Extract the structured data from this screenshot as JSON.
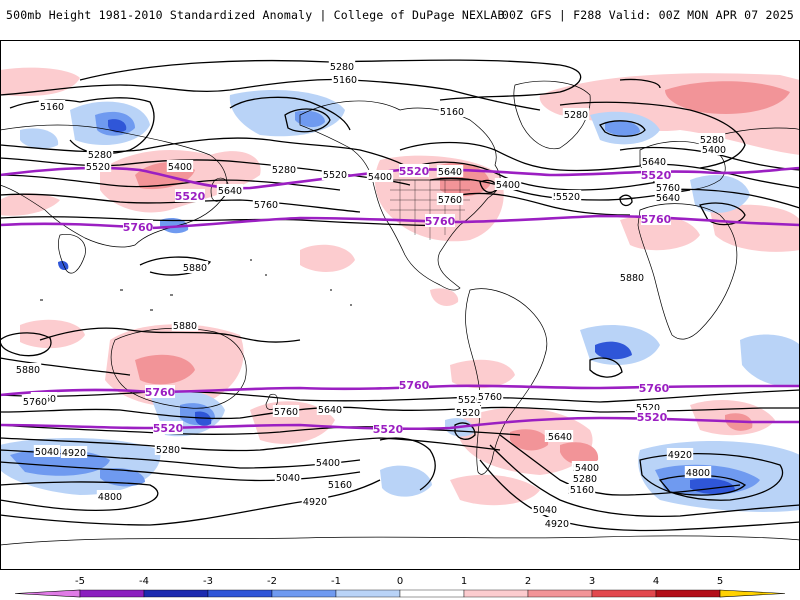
{
  "header": {
    "left": "500mb Height 1981-2010 Standardized Anomaly | College of DuPage NEXLAB",
    "right": "00Z GFS | F288 Valid: 00Z MON APR 07 2025"
  },
  "contour_labels": [
    {
      "text": "5280",
      "lat": 60
    },
    {
      "text": "5160",
      "lat": 57
    },
    {
      "text": "5160",
      "lat": 50
    },
    {
      "text": "5280",
      "lat": 45
    },
    {
      "text": "5520",
      "lat": 42
    },
    {
      "text": "5400",
      "lat": 41
    },
    {
      "text": "5640",
      "lat": 36
    },
    {
      "text": "5520",
      "lat": 30
    },
    {
      "text": "5760",
      "lat": 28
    },
    {
      "text": "5880",
      "lat": 18
    },
    {
      "text": "5280",
      "lat": 38
    },
    {
      "text": "5400",
      "lat": 35
    },
    {
      "text": "5640",
      "lat": 33
    },
    {
      "text": "5760",
      "lat": 24
    },
    {
      "text": "5160",
      "lat": 55
    },
    {
      "text": "5280",
      "lat": 48
    },
    {
      "text": "5400",
      "lat": 42
    },
    {
      "text": "5640",
      "lat": 42
    },
    {
      "text": "5520",
      "lat": 30
    },
    {
      "text": "5760",
      "lat": 27
    },
    {
      "text": "5280",
      "lat": 52
    },
    {
      "text": "5400",
      "lat": 48
    },
    {
      "text": "5640",
      "lat": 40
    },
    {
      "text": "5760",
      "lat": 38
    },
    {
      "text": "5520",
      "lat": 32
    },
    {
      "text": "5880",
      "lat": 0
    },
    {
      "text": "5880",
      "lat": -12
    },
    {
      "text": "5880",
      "lat": -25
    },
    {
      "text": "5760",
      "lat": -40
    },
    {
      "text": "5760",
      "lat": -43
    },
    {
      "text": "5640",
      "lat": -41
    },
    {
      "text": "5520",
      "lat": -40
    },
    {
      "text": "5400",
      "lat": -46
    },
    {
      "text": "5160",
      "lat": -50
    },
    {
      "text": "5040",
      "lat": -51
    },
    {
      "text": "4920",
      "lat": -51
    },
    {
      "text": "5280",
      "lat": -54
    },
    {
      "text": "5400",
      "lat": -58
    },
    {
      "text": "5280",
      "lat": -60
    },
    {
      "text": "5160",
      "lat": -62
    },
    {
      "text": "5040",
      "lat": -61
    },
    {
      "text": "4920",
      "lat": -66
    },
    {
      "text": "4800",
      "lat": -63
    },
    {
      "text": "5640",
      "lat": -47
    },
    {
      "text": "5520",
      "lat": -41
    },
    {
      "text": "5760",
      "lat": -43
    },
    {
      "text": "5760",
      "lat": -30
    },
    {
      "text": "5640",
      "lat": -50
    },
    {
      "text": "5400",
      "lat": -58
    },
    {
      "text": "5280",
      "lat": -59
    },
    {
      "text": "5160",
      "lat": -61
    },
    {
      "text": "5040",
      "lat": -71
    },
    {
      "text": "4920",
      "lat": -76
    },
    {
      "text": "5520",
      "lat": -40
    },
    {
      "text": "4920",
      "lat": -57
    },
    {
      "text": "4800",
      "lat": -63
    }
  ],
  "purple_labels": [
    {
      "text": "5520"
    },
    {
      "text": "5520"
    },
    {
      "text": "5520"
    },
    {
      "text": "5760"
    },
    {
      "text": "5760"
    },
    {
      "text": "5760"
    },
    {
      "text": "5760"
    },
    {
      "text": "5760"
    },
    {
      "text": "5760"
    },
    {
      "text": "5520"
    },
    {
      "text": "5520"
    },
    {
      "text": "5520"
    }
  ],
  "colorbar": {
    "ticks": [
      "-5",
      "-4",
      "-3",
      "-2",
      "-1",
      "0",
      "1",
      "2",
      "3",
      "4",
      "5"
    ],
    "colors": [
      "#8b1fbf",
      "#1c2bb0",
      "#2f56d8",
      "#6f9af0",
      "#b9d3f7",
      "#ffffff",
      "#fccccf",
      "#f29498",
      "#e2484e",
      "#b30f19",
      "#f0a000"
    ],
    "min_arrow_color": "#e07be6",
    "max_arrow_color": "#ffd200"
  },
  "legend_map": {
    "lat_range": [
      -90,
      90
    ],
    "lon_range": [
      -180,
      180
    ],
    "projection": "equirectangular"
  }
}
